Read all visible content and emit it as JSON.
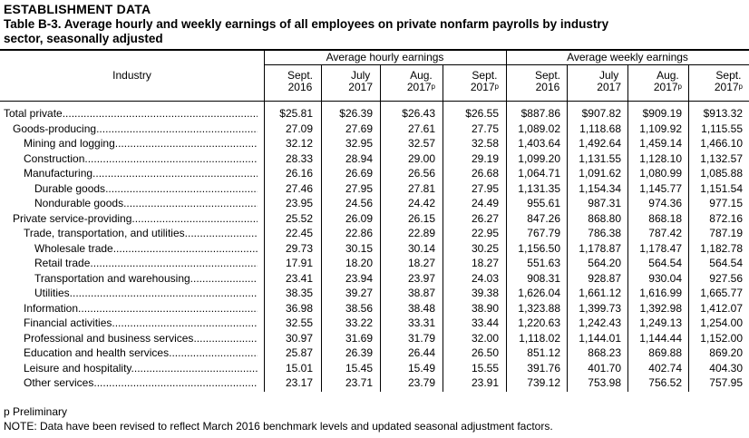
{
  "header": {
    "section": "ESTABLISHMENT DATA",
    "title_line1": "Table B-3. Average hourly and weekly earnings of all employees on private nonfarm payrolls by industry",
    "title_line2": "sector, seasonally adjusted"
  },
  "table": {
    "industry_label": "Industry",
    "groups": [
      "Average hourly earnings",
      "Average weekly earnings"
    ],
    "columns": [
      {
        "line1": "Sept.",
        "line2": "2016",
        "sup": ""
      },
      {
        "line1": "July",
        "line2": "2017",
        "sup": ""
      },
      {
        "line1": "Aug.",
        "line2": "2017",
        "sup": "p"
      },
      {
        "line1": "Sept.",
        "line2": "2017",
        "sup": "p"
      },
      {
        "line1": "Sept.",
        "line2": "2016",
        "sup": ""
      },
      {
        "line1": "July",
        "line2": "2017",
        "sup": ""
      },
      {
        "line1": "Aug.",
        "line2": "2017",
        "sup": "p"
      },
      {
        "line1": "Sept.",
        "line2": "2017",
        "sup": "p"
      }
    ],
    "rows": [
      {
        "label": "Total private",
        "indent": 0,
        "values": [
          "$25.81",
          "$26.39",
          "$26.43",
          "$26.55",
          "$887.86",
          "$907.82",
          "$909.19",
          "$913.32"
        ]
      },
      {
        "label": "Goods-producing",
        "indent": 1,
        "values": [
          "27.09",
          "27.69",
          "27.61",
          "27.75",
          "1,089.02",
          "1,118.68",
          "1,109.92",
          "1,115.55"
        ]
      },
      {
        "label": "Mining and logging",
        "indent": 2,
        "values": [
          "32.12",
          "32.95",
          "32.57",
          "32.58",
          "1,403.64",
          "1,492.64",
          "1,459.14",
          "1,466.10"
        ]
      },
      {
        "label": "Construction",
        "indent": 2,
        "values": [
          "28.33",
          "28.94",
          "29.00",
          "29.19",
          "1,099.20",
          "1,131.55",
          "1,128.10",
          "1,132.57"
        ]
      },
      {
        "label": "Manufacturing",
        "indent": 2,
        "values": [
          "26.16",
          "26.69",
          "26.56",
          "26.68",
          "1,064.71",
          "1,091.62",
          "1,080.99",
          "1,085.88"
        ]
      },
      {
        "label": "Durable goods",
        "indent": 3,
        "values": [
          "27.46",
          "27.95",
          "27.81",
          "27.95",
          "1,131.35",
          "1,154.34",
          "1,145.77",
          "1,151.54"
        ]
      },
      {
        "label": "Nondurable goods",
        "indent": 3,
        "values": [
          "23.95",
          "24.56",
          "24.42",
          "24.49",
          "955.61",
          "987.31",
          "974.36",
          "977.15"
        ]
      },
      {
        "label": "Private service-providing",
        "indent": 1,
        "values": [
          "25.52",
          "26.09",
          "26.15",
          "26.27",
          "847.26",
          "868.80",
          "868.18",
          "872.16"
        ]
      },
      {
        "label": "Trade, transportation, and utilities",
        "indent": 2,
        "values": [
          "22.45",
          "22.86",
          "22.89",
          "22.95",
          "767.79",
          "786.38",
          "787.42",
          "787.19"
        ]
      },
      {
        "label": "Wholesale trade",
        "indent": 3,
        "values": [
          "29.73",
          "30.15",
          "30.14",
          "30.25",
          "1,156.50",
          "1,178.87",
          "1,178.47",
          "1,182.78"
        ]
      },
      {
        "label": "Retail trade",
        "indent": 3,
        "values": [
          "17.91",
          "18.20",
          "18.27",
          "18.27",
          "551.63",
          "564.20",
          "564.54",
          "564.54"
        ]
      },
      {
        "label": "Transportation and warehousing",
        "indent": 3,
        "values": [
          "23.41",
          "23.94",
          "23.97",
          "24.03",
          "908.31",
          "928.87",
          "930.04",
          "927.56"
        ]
      },
      {
        "label": "Utilities",
        "indent": 3,
        "values": [
          "38.35",
          "39.27",
          "38.87",
          "39.38",
          "1,626.04",
          "1,661.12",
          "1,616.99",
          "1,665.77"
        ]
      },
      {
        "label": "Information",
        "indent": 2,
        "values": [
          "36.98",
          "38.56",
          "38.48",
          "38.90",
          "1,323.88",
          "1,399.73",
          "1,392.98",
          "1,412.07"
        ]
      },
      {
        "label": "Financial activities",
        "indent": 2,
        "values": [
          "32.55",
          "33.22",
          "33.31",
          "33.44",
          "1,220.63",
          "1,242.43",
          "1,249.13",
          "1,254.00"
        ]
      },
      {
        "label": "Professional and business services",
        "indent": 2,
        "values": [
          "30.97",
          "31.69",
          "31.79",
          "32.00",
          "1,118.02",
          "1,144.01",
          "1,144.44",
          "1,152.00"
        ]
      },
      {
        "label": "Education and health services",
        "indent": 2,
        "values": [
          "25.87",
          "26.39",
          "26.44",
          "26.50",
          "851.12",
          "868.23",
          "869.88",
          "869.20"
        ]
      },
      {
        "label": "Leisure and hospitality",
        "indent": 2,
        "values": [
          "15.01",
          "15.45",
          "15.49",
          "15.55",
          "391.76",
          "401.70",
          "402.74",
          "404.30"
        ]
      },
      {
        "label": "Other services",
        "indent": 2,
        "values": [
          "23.17",
          "23.71",
          "23.79",
          "23.91",
          "739.12",
          "753.98",
          "756.52",
          "757.95"
        ]
      }
    ]
  },
  "footnotes": {
    "p": "p Preliminary",
    "note": "NOTE: Data have been revised to reflect March 2016 benchmark levels and updated seasonal adjustment factors."
  }
}
